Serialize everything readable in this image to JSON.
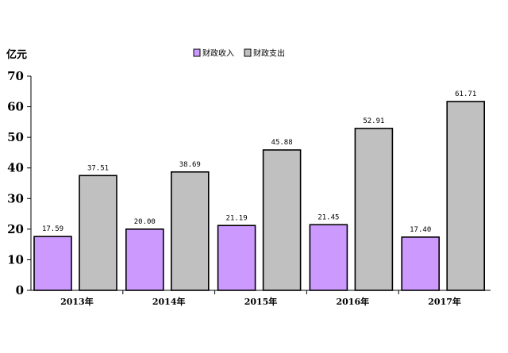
{
  "chart_data": {
    "type": "bar",
    "title": "",
    "ylabel": "亿元",
    "xlabel": "",
    "categories": [
      "2013年",
      "2014年",
      "2015年",
      "2016年",
      "2017年"
    ],
    "series": [
      {
        "name": "财政收入",
        "values": [
          17.59,
          20.0,
          21.19,
          21.45,
          17.4
        ],
        "labels": [
          "17.59",
          "20.00",
          "21.19",
          "21.45",
          "17.40"
        ],
        "color": "#cc99ff"
      },
      {
        "name": "财政支出",
        "values": [
          37.51,
          38.69,
          45.88,
          52.91,
          61.71
        ],
        "labels": [
          "37.51",
          "38.69",
          "45.88",
          "52.91",
          "61.71"
        ],
        "color": "#c0c0c0"
      }
    ],
    "ylim": [
      0,
      70
    ],
    "yticks": [
      "0",
      "10",
      "20",
      "30",
      "40",
      "50",
      "60",
      "70"
    ],
    "grid": false,
    "legend": "top-center"
  }
}
